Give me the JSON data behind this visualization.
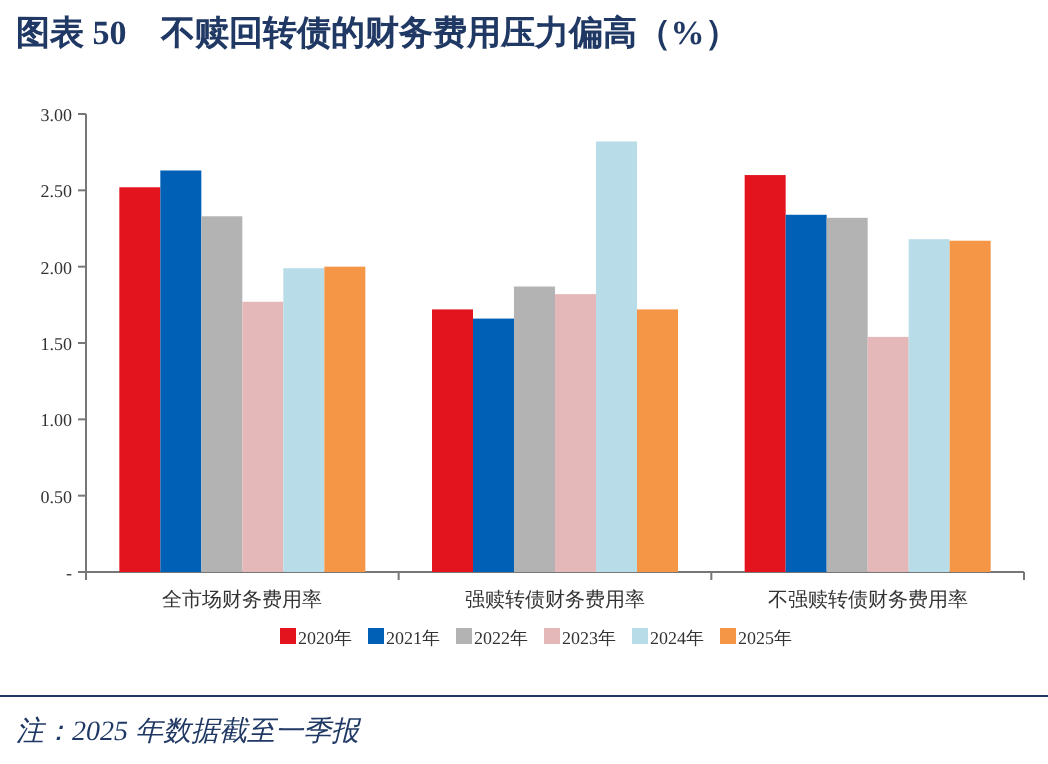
{
  "chart_data": {
    "type": "bar",
    "title": "图表 50　不赎回转债的财务费用压力偏高（%）",
    "categories": [
      "全市场财务费用率",
      "强赎转债财务费用率",
      "不强赎转债财务费用率"
    ],
    "series": [
      {
        "name": "2020年",
        "color": "#e3141e",
        "values": [
          2.52,
          1.72,
          2.6
        ]
      },
      {
        "name": "2021年",
        "color": "#0060b6",
        "values": [
          2.63,
          1.66,
          2.34
        ]
      },
      {
        "name": "2022年",
        "color": "#b3b3b3",
        "values": [
          2.33,
          1.87,
          2.32
        ]
      },
      {
        "name": "2023年",
        "color": "#e4b8b8",
        "values": [
          1.77,
          1.82,
          1.54
        ]
      },
      {
        "name": "2024年",
        "color": "#b8dde8",
        "values": [
          1.99,
          2.82,
          2.18
        ]
      },
      {
        "name": "2025年",
        "color": "#f59647",
        "values": [
          2.0,
          1.72,
          2.17
        ]
      }
    ],
    "ylim": [
      0,
      3
    ],
    "yticks": [
      {
        "value": 0,
        "label": "-"
      },
      {
        "value": 0.5,
        "label": "0.50"
      },
      {
        "value": 1,
        "label": "1.00"
      },
      {
        "value": 1.5,
        "label": "1.50"
      },
      {
        "value": 2,
        "label": "2.00"
      },
      {
        "value": 2.5,
        "label": "2.50"
      },
      {
        "value": 3,
        "label": "3.00"
      }
    ],
    "grid": false,
    "legend": "bottom",
    "annotations": [
      "注：2025 年数据截至一季报"
    ]
  }
}
